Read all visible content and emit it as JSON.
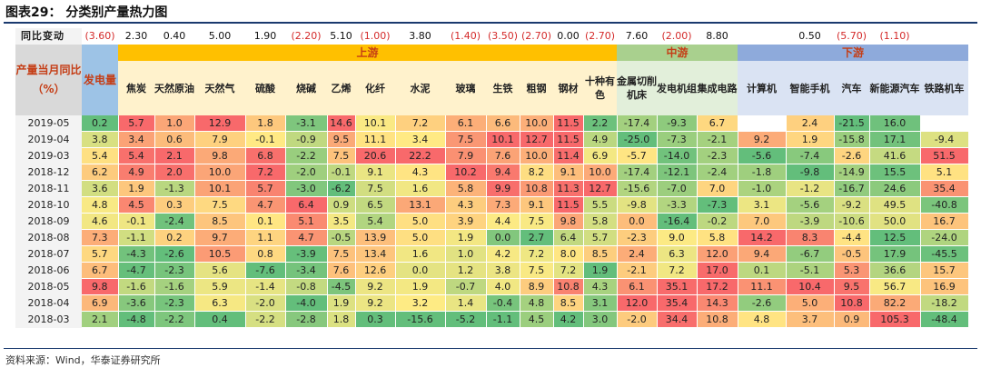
{
  "title": "图表29： 分类别产量热力图",
  "source": "资料来源：Wind，华泰证券研究所",
  "change_label": "同比变动",
  "corner_label": "产量当月同比（%）",
  "colors": {
    "upstream": "#ffc000",
    "midstream": "#a9d08e",
    "downstream": "#8eaadb",
    "power": "#9dc3e6",
    "corner": "#d9d9d9"
  },
  "groups": [
    {
      "name": "上游",
      "span": 13
    },
    {
      "name": "中游",
      "span": 3
    },
    {
      "name": "下游",
      "span": 5
    }
  ],
  "columns": [
    "发电量",
    "焦炭",
    "天然原油",
    "天然气",
    "硫酸",
    "烧碱",
    "乙烯",
    "化纤",
    "水泥",
    "玻璃",
    "生铁",
    "粗钢",
    "钢材",
    "十种有色",
    "金属切削机床",
    "发电机组",
    "集成电路",
    "计算机",
    "智能手机",
    "汽车",
    "新能源汽车",
    "铁路机车"
  ],
  "changes": [
    "(3.60)",
    "2.30",
    "0.40",
    "5.00",
    "1.90",
    "(2.20)",
    "5.10",
    "(1.00)",
    "3.80",
    "(1.40)",
    "(3.50)",
    "(2.70)",
    "0.00",
    "(2.70)",
    "7.60",
    "(2.00)",
    "8.80",
    "",
    "0.50",
    "(5.70)",
    "(1.10)",
    ""
  ],
  "rows": [
    {
      "date": "2019-05",
      "values": [
        "0.2",
        "5.7",
        "1.0",
        "12.9",
        "1.8",
        "-3.1",
        "14.6",
        "10.1",
        "7.2",
        "6.1",
        "6.6",
        "10.0",
        "11.5",
        "2.2",
        "-17.4",
        "-9.3",
        "6.7",
        "",
        "2.4",
        "-21.5",
        "16.0",
        ""
      ]
    },
    {
      "date": "2019-04",
      "values": [
        "3.8",
        "3.4",
        "0.6",
        "7.9",
        "-0.1",
        "-0.9",
        "9.5",
        "11.1",
        "3.4",
        "7.5",
        "10.1",
        "12.7",
        "11.5",
        "4.9",
        "-25.0",
        "-7.3",
        "-2.1",
        "9.2",
        "1.9",
        "-15.8",
        "17.1",
        "-9.4"
      ]
    },
    {
      "date": "2019-03",
      "values": [
        "5.4",
        "5.4",
        "2.1",
        "9.8",
        "6.8",
        "-2.2",
        "7.5",
        "20.6",
        "22.2",
        "7.9",
        "7.6",
        "10.0",
        "11.4",
        "6.9",
        "-5.7",
        "-14.0",
        "-2.3",
        "-5.6",
        "-7.4",
        "-2.6",
        "41.6",
        "51.5"
      ]
    },
    {
      "date": "2018-12",
      "values": [
        "6.2",
        "4.9",
        "2.0",
        "10.0",
        "7.2",
        "-2.0",
        "-0.1",
        "9.1",
        "4.3",
        "10.2",
        "9.4",
        "8.2",
        "9.1",
        "10.0",
        "-17.4",
        "-12.1",
        "-2.4",
        "-1.8",
        "-9.8",
        "-14.9",
        "15.5",
        "5.1"
      ]
    },
    {
      "date": "2018-11",
      "values": [
        "3.6",
        "1.9",
        "-1.3",
        "10.1",
        "5.7",
        "-3.0",
        "-6.2",
        "7.5",
        "1.6",
        "5.8",
        "9.9",
        "10.8",
        "11.3",
        "12.7",
        "-15.6",
        "-7.0",
        "7.0",
        "-1.0",
        "-1.2",
        "-16.7",
        "24.6",
        "35.4"
      ]
    },
    {
      "date": "2018-10",
      "values": [
        "4.8",
        "4.5",
        "0.3",
        "7.5",
        "4.7",
        "6.4",
        "0.9",
        "6.5",
        "13.1",
        "4.3",
        "7.3",
        "9.1",
        "11.5",
        "5.5",
        "-9.8",
        "-3.3",
        "-7.3",
        "3.1",
        "-5.6",
        "-9.2",
        "49.5",
        "-40.8"
      ]
    },
    {
      "date": "2018-09",
      "values": [
        "4.6",
        "-0.1",
        "-2.4",
        "8.5",
        "0.1",
        "5.1",
        "3.5",
        "5.4",
        "5.0",
        "3.9",
        "4.4",
        "7.5",
        "9.8",
        "5.8",
        "0.0",
        "-16.4",
        "-0.2",
        "7.0",
        "-3.9",
        "-10.6",
        "50.0",
        "16.7"
      ]
    },
    {
      "date": "2018-08",
      "values": [
        "7.3",
        "-1.1",
        "0.2",
        "9.7",
        "1.1",
        "4.7",
        "-0.5",
        "13.9",
        "5.0",
        "1.9",
        "0.0",
        "2.7",
        "6.4",
        "5.7",
        "-2.3",
        "9.0",
        "5.8",
        "14.2",
        "8.3",
        "-4.4",
        "12.5",
        "-24.0"
      ]
    },
    {
      "date": "2018-07",
      "values": [
        "5.7",
        "-4.3",
        "-2.6",
        "10.5",
        "0.8",
        "-3.9",
        "7.5",
        "13.4",
        "1.6",
        "1.0",
        "4.2",
        "7.2",
        "8.0",
        "8.5",
        "2.4",
        "6.3",
        "12.0",
        "9.4",
        "-6.7",
        "-0.5",
        "17.9",
        "-45.5"
      ]
    },
    {
      "date": "2018-06",
      "values": [
        "6.7",
        "-4.7",
        "-2.3",
        "5.6",
        "-7.6",
        "-3.4",
        "7.6",
        "12.6",
        "0.0",
        "1.2",
        "3.8",
        "7.5",
        "7.2",
        "1.9",
        "-2.1",
        "7.2",
        "17.0",
        "0.1",
        "-5.1",
        "5.3",
        "36.6",
        "15.7"
      ]
    },
    {
      "date": "2018-05",
      "values": [
        "9.8",
        "-1.6",
        "-1.6",
        "5.9",
        "-1.4",
        "-0.8",
        "-4.5",
        "9.2",
        "1.9",
        "-0.7",
        "4.0",
        "8.9",
        "10.8",
        "4.3",
        "6.1",
        "35.1",
        "17.2",
        "11.1",
        "10.4",
        "9.5",
        "56.7",
        "16.9"
      ]
    },
    {
      "date": "2018-04",
      "values": [
        "6.9",
        "-3.6",
        "-2.3",
        "6.3",
        "-2.0",
        "-4.0",
        "1.9",
        "9.2",
        "3.2",
        "1.4",
        "-0.4",
        "4.8",
        "8.5",
        "3.1",
        "12.0",
        "35.4",
        "14.3",
        "-2.6",
        "5.0",
        "10.8",
        "82.2",
        "-18.2"
      ]
    },
    {
      "date": "2018-03",
      "values": [
        "2.1",
        "-4.8",
        "-2.2",
        "0.4",
        "-2.2",
        "-2.8",
        "1.8",
        "0.3",
        "-15.6",
        "-5.2",
        "-1.1",
        "4.5",
        "4.2",
        "3.0",
        "-2.0",
        "34.4",
        "10.8",
        "4.8",
        "3.7",
        "0.9",
        "105.3",
        "-48.4"
      ]
    }
  ]
}
